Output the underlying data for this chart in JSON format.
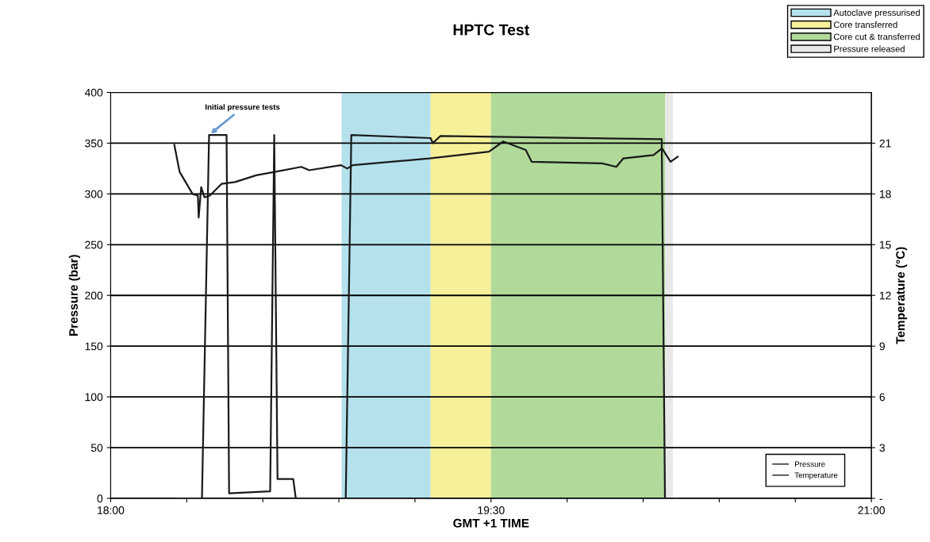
{
  "chart_data": {
    "type": "line",
    "title": "HPTC Test",
    "xlabel": "GMT +1 TIME",
    "ylabel": "Pressure (bar)",
    "y2label": "Temperature (°C)",
    "xlim": [
      18,
      21
    ],
    "xticks": [
      {
        "value": 18,
        "label": "18:00"
      },
      {
        "value": 18.3,
        "label": null
      },
      {
        "value": 18.6,
        "label": null
      },
      {
        "value": 18.9,
        "label": null
      },
      {
        "value": 19.2,
        "label": null
      },
      {
        "value": 19.5,
        "label": "19:30"
      },
      {
        "value": 19.8,
        "label": null
      },
      {
        "value": 20.1,
        "label": null
      },
      {
        "value": 20.4,
        "label": null
      },
      {
        "value": 20.7,
        "label": null
      },
      {
        "value": 21,
        "label": "21:00"
      }
    ],
    "ylim": [
      0,
      400
    ],
    "yticks": [
      0,
      50,
      100,
      150,
      200,
      250,
      300,
      350,
      400
    ],
    "y2lim": [
      0,
      24
    ],
    "y2ticks": [
      {
        "value": 0,
        "label": "-"
      },
      3,
      6,
      9,
      12,
      15,
      18,
      21
    ],
    "grid": "y",
    "legend": "right",
    "series": [
      {
        "name": "Pressure",
        "color": "#1a1a1a",
        "x": [
          18.254,
          18.36,
          18.388,
          18.457,
          18.467,
          18.629,
          18.645,
          18.658,
          18.72,
          18.73,
          18.927,
          18.949,
          19.262,
          19.27,
          19.3,
          20.173,
          20.186,
          20.236
        ],
        "values": [
          0,
          0,
          358,
          358,
          5,
          7,
          358,
          19,
          19,
          0,
          0,
          358,
          355,
          350,
          357,
          354,
          0,
          0
        ]
      },
      {
        "name": "Temperature",
        "color": "#1a1a1a",
        "axis": "y2",
        "x": [
          18.251,
          18.272,
          18.323,
          18.344,
          18.347,
          18.357,
          18.37,
          18.391,
          18.438,
          18.491,
          18.574,
          18.647,
          18.752,
          18.783,
          18.908,
          18.933,
          18.955,
          19.257,
          19.492,
          19.548,
          19.637,
          19.66,
          19.939,
          19.994,
          20.022,
          20.141,
          20.174,
          20.208,
          20.236
        ],
        "values": [
          20.9,
          19.3,
          18.0,
          17.9,
          16.6,
          18.4,
          17.8,
          17.9,
          18.6,
          18.7,
          19.1,
          19.3,
          19.6,
          19.4,
          19.7,
          19.5,
          19.7,
          20.1,
          20.5,
          21.1,
          20.6,
          19.9,
          19.8,
          19.6,
          20.1,
          20.3,
          20.7,
          19.9,
          20.2
        ]
      }
    ],
    "bands": [
      {
        "axis": "x",
        "from": 18.911,
        "to": 19.262,
        "label": "Autoclave pressurised",
        "color": "#b4e1ec"
      },
      {
        "axis": "x",
        "from": 19.262,
        "to": 19.5,
        "label": "Core transferred",
        "color": "#f6f09a"
      },
      {
        "axis": "x",
        "from": 19.5,
        "to": 20.186,
        "label": "Core cut & transferred",
        "color": "#b0d99a"
      },
      {
        "axis": "x",
        "from": 20.186,
        "to": 20.217,
        "label": "Pressure released",
        "color": "#e8e8e8"
      }
    ],
    "annotations": [
      {
        "text": "Initial pressure tests",
        "x": 18.388,
        "y": 358
      }
    ]
  }
}
